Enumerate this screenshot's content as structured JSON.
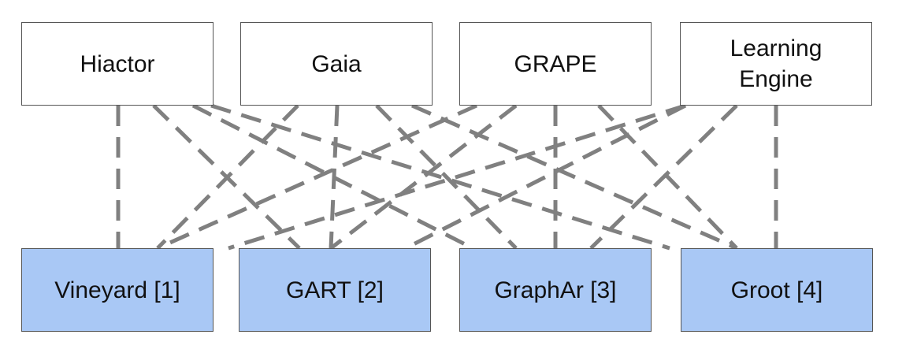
{
  "colors": {
    "top_fill": "#ffffff",
    "bottom_fill": "#a9c8f5",
    "border": "#555555",
    "edge": "#808080"
  },
  "edge_style": "dashed",
  "top_nodes": [
    {
      "id": "hiactor",
      "label": "Hiactor"
    },
    {
      "id": "gaia",
      "label": "Gaia"
    },
    {
      "id": "grape",
      "label": "GRAPE"
    },
    {
      "id": "learning",
      "label": "Learning\nEngine"
    }
  ],
  "bottom_nodes": [
    {
      "id": "vineyard",
      "label": "Vineyard [1]"
    },
    {
      "id": "gart",
      "label": "GART [2]"
    },
    {
      "id": "graphar",
      "label": "GraphAr [3]"
    },
    {
      "id": "groot",
      "label": "Groot [4]"
    }
  ],
  "edges": [
    {
      "from": "hiactor",
      "to": "vineyard"
    },
    {
      "from": "hiactor",
      "to": "gart"
    },
    {
      "from": "hiactor",
      "to": "graphar"
    },
    {
      "from": "hiactor",
      "to": "groot"
    },
    {
      "from": "gaia",
      "to": "vineyard"
    },
    {
      "from": "gaia",
      "to": "gart"
    },
    {
      "from": "gaia",
      "to": "graphar"
    },
    {
      "from": "gaia",
      "to": "groot"
    },
    {
      "from": "grape",
      "to": "vineyard"
    },
    {
      "from": "grape",
      "to": "gart"
    },
    {
      "from": "grape",
      "to": "graphar"
    },
    {
      "from": "grape",
      "to": "groot"
    },
    {
      "from": "learning",
      "to": "vineyard"
    },
    {
      "from": "learning",
      "to": "gart"
    },
    {
      "from": "learning",
      "to": "graphar"
    },
    {
      "from": "learning",
      "to": "groot"
    }
  ]
}
